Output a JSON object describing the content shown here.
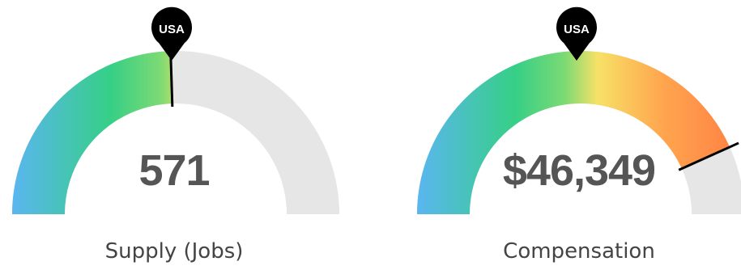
{
  "gauges": [
    {
      "id": "supply",
      "value": "571",
      "label": "Supply (Jobs)",
      "marker": "USA",
      "needle_fraction": 0.98,
      "fill_fraction": 0.98
    },
    {
      "id": "compensation",
      "value": "$46,349",
      "label": "Compensation",
      "marker": "USA",
      "needle_fraction": 1.73,
      "fill_fraction": 1.73
    }
  ],
  "colors": {
    "track": "#e6e6e6",
    "needle": "#000000",
    "pin": "#000000",
    "pin_text": "#ffffff",
    "value_text": "#555555",
    "label_text": "#444444",
    "gradient_stops": [
      "#5ab6f0",
      "#36cf86",
      "#7bda74",
      "#f7e166",
      "#ffa54e",
      "#ff7d43"
    ]
  }
}
